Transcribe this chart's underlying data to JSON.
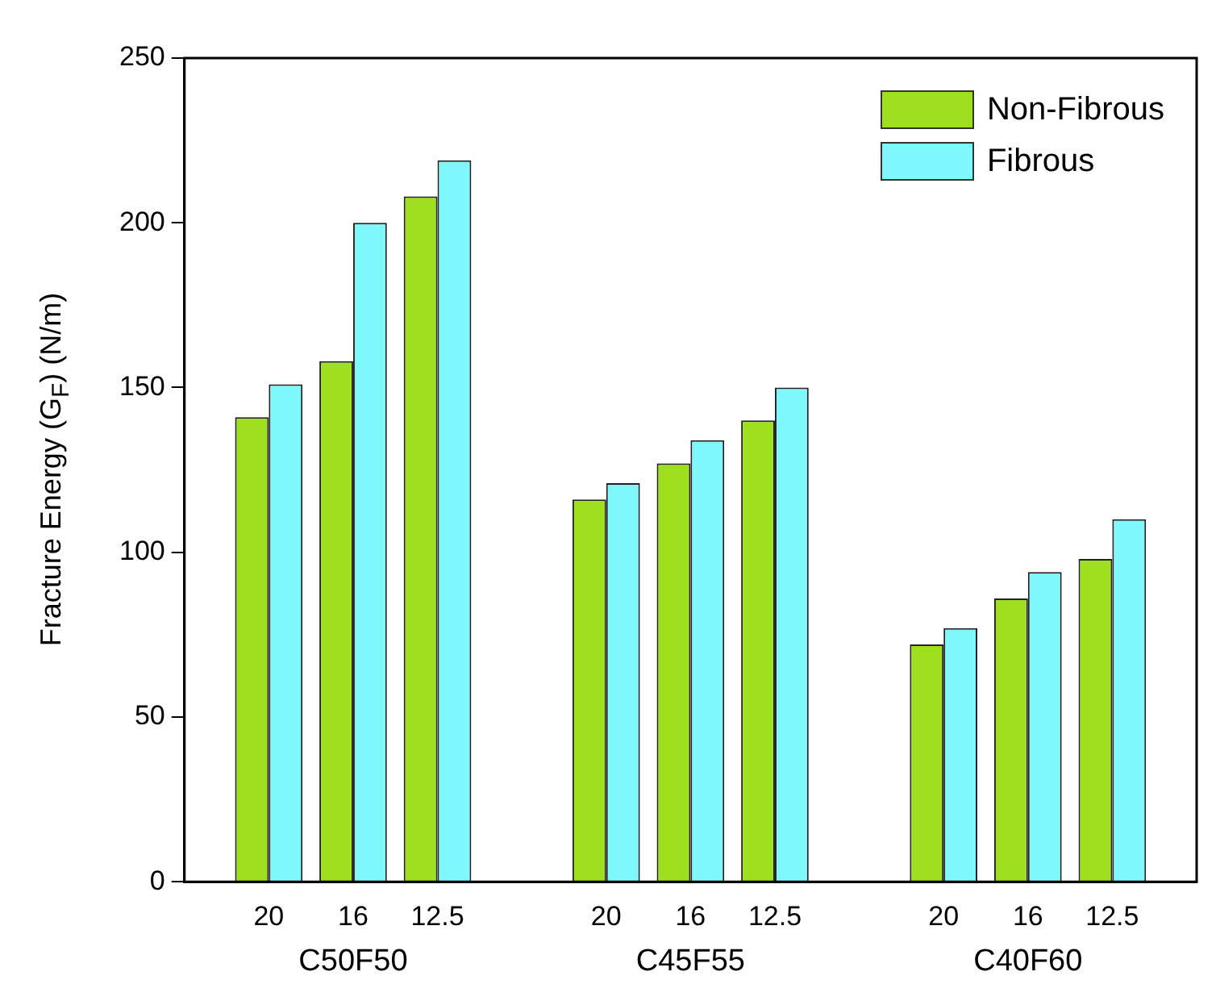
{
  "chart_data": {
    "type": "bar",
    "ylabel": "Fracture Energy (G$_{F}$) (N/m)",
    "categories": [
      null,
      "20",
      "16",
      "12.5",
      null,
      "20",
      "16",
      "12.5",
      null,
      "20",
      "16",
      "12.5",
      null
    ],
    "series": [
      {
        "name": "Non-Fibrous",
        "color": "#9ee01e",
        "values": [
          null,
          141,
          158,
          208,
          null,
          116,
          127,
          140,
          null,
          72,
          86,
          98,
          null
        ]
      },
      {
        "name": "Fibrous",
        "color": "#7ff8fb",
        "values": [
          null,
          151,
          200,
          219,
          null,
          121,
          134,
          150,
          null,
          77,
          94,
          110,
          null
        ]
      }
    ],
    "annotations": [
      "C50F50",
      "C45F55",
      "C40F60"
    ],
    "ylim": [
      0,
      250
    ],
    "yticks": [
      0,
      50,
      100,
      150,
      200,
      250
    ],
    "grid": false,
    "legend": "top right"
  }
}
